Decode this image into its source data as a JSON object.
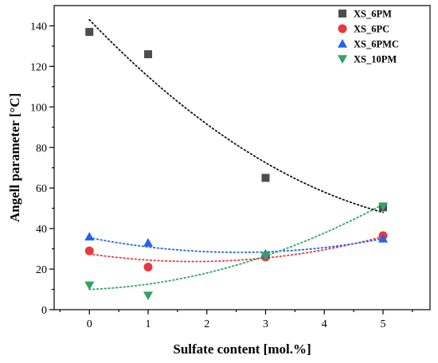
{
  "chart_data": {
    "type": "scatter",
    "xlabel": "Sulfate content [mol.%]",
    "ylabel": "Angell parameter [°C]",
    "xlim": [
      -0.6,
      5.8
    ],
    "ylim": [
      0,
      150
    ],
    "xticks": [
      0,
      1,
      2,
      3,
      4,
      5
    ],
    "yticks": [
      0,
      20,
      40,
      60,
      80,
      100,
      120,
      140
    ],
    "x": [
      0,
      1,
      3,
      5
    ],
    "legend_position": "top-right",
    "grid": false,
    "trendlines": "quadratic, dotted",
    "series": [
      {
        "name": "XS_6PM",
        "marker": "square",
        "color": "#4d4d4d",
        "trend_color": "#111111",
        "values": [
          137,
          126,
          65,
          50.5
        ],
        "trend": [
          143.0,
          115.0,
          72.5,
          48.0
        ]
      },
      {
        "name": "XS_6PC",
        "marker": "circle",
        "color": "#e8383d",
        "trend_color": "#e8383d",
        "values": [
          29,
          21,
          26,
          36.5
        ],
        "trend": [
          27.5,
          23.5,
          25.5,
          36.0
        ]
      },
      {
        "name": "XS_6PMC",
        "marker": "triangle-up",
        "color": "#2563eb",
        "trend_color": "#2563eb",
        "values": [
          36,
          33,
          27.5,
          35
        ],
        "trend": [
          35.5,
          31.0,
          28.5,
          35.0
        ]
      },
      {
        "name": "XS_10PM",
        "marker": "triangle-down",
        "color": "#2ea562",
        "trend_color": "#2ea562",
        "values": [
          12,
          7,
          26.5,
          51
        ],
        "trend": [
          10.0,
          10.5,
          26.5,
          52.0
        ]
      }
    ]
  }
}
